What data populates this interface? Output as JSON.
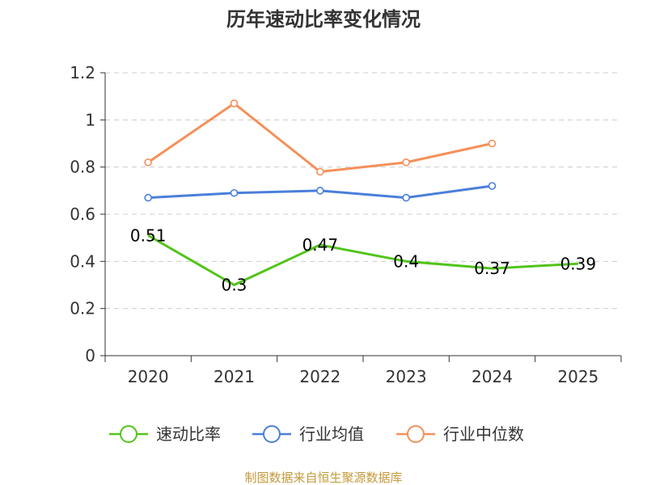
{
  "chart_data": {
    "type": "line",
    "title": "历年速动比率变化情况",
    "categories": [
      "2020",
      "2021",
      "2022",
      "2023",
      "2024",
      "2025"
    ],
    "ylim": [
      0,
      1.2
    ],
    "yticks": [
      "0",
      "0.2",
      "0.4",
      "0.6",
      "0.8",
      "1",
      "1.2"
    ],
    "grid": true,
    "legend_position": "bottom",
    "series": [
      {
        "name": "速动比率",
        "color": "#52c41a",
        "values": [
          0.51,
          0.3,
          0.47,
          0.4,
          0.37,
          0.39
        ],
        "labels": [
          "0.51",
          "0.3",
          "0.47",
          "0.4",
          "0.37",
          "0.39"
        ],
        "show_labels": true,
        "show_markers": false
      },
      {
        "name": "行业均值",
        "color": "#4a7fdb",
        "values": [
          0.67,
          0.69,
          0.7,
          0.67,
          0.72,
          null
        ],
        "show_labels": false,
        "show_markers": true
      },
      {
        "name": "行业中位数",
        "color": "#f5905a",
        "values": [
          0.82,
          1.07,
          0.78,
          0.82,
          0.9,
          null
        ],
        "show_labels": false,
        "show_markers": true
      }
    ],
    "source": "制图数据来自恒生聚源数据库"
  }
}
